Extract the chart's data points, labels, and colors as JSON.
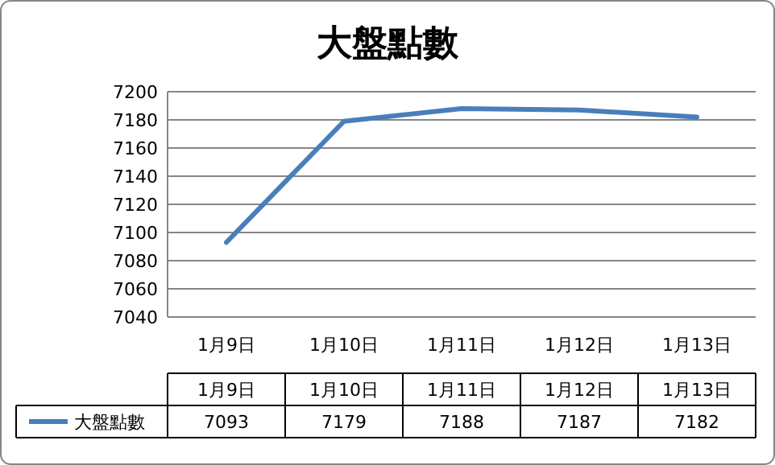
{
  "chart_data": {
    "type": "line",
    "title": "大盤點數",
    "categories": [
      "1月9日",
      "1月10日",
      "1月11日",
      "1月12日",
      "1月13日"
    ],
    "series": [
      {
        "name": "大盤點數",
        "color": "#4a7ebb",
        "values": [
          7093,
          7179,
          7188,
          7187,
          7182
        ]
      }
    ],
    "ylim": [
      7040,
      7200
    ],
    "yticks": [
      7040,
      7060,
      7080,
      7100,
      7120,
      7140,
      7160,
      7180,
      7200
    ],
    "grid": "y",
    "legend": "bottom",
    "data_labels": true,
    "marker": "none",
    "line_style": "solid"
  }
}
